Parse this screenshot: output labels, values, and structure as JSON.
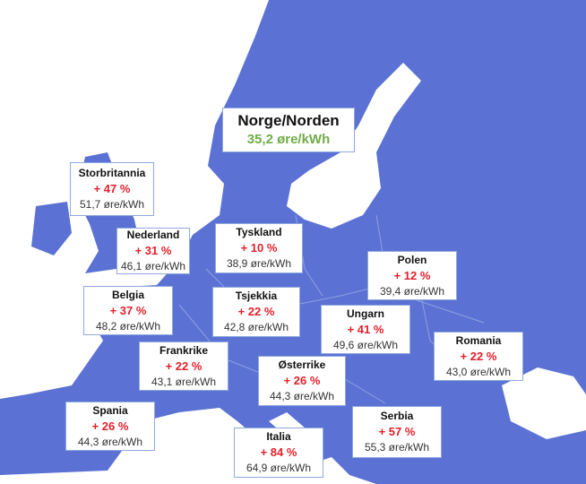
{
  "highlight": {
    "name": "Norge/Norden",
    "price": "35,2 øre/kWh"
  },
  "callouts": [
    {
      "name": "Storbritannia",
      "change": "+ 47 %",
      "price": "51,7 øre/kWh"
    },
    {
      "name": "Nederland",
      "change": "+ 31 %",
      "price": "46,1 øre/kWh"
    },
    {
      "name": "Tyskland",
      "change": "+ 10 %",
      "price": "38,9 øre/kWh"
    },
    {
      "name": "Polen",
      "change": "+ 12 %",
      "price": "39,4 øre/kWh"
    },
    {
      "name": "Belgia",
      "change": "+ 37 %",
      "price": "48,2 øre/kWh"
    },
    {
      "name": "Tsjekkia",
      "change": "+ 22 %",
      "price": "42,8 øre/kWh"
    },
    {
      "name": "Ungarn",
      "change": "+ 41 %",
      "price": "49,6 øre/kWh"
    },
    {
      "name": "Romania",
      "change": "+ 22 %",
      "price": "43,0 øre/kWh"
    },
    {
      "name": "Frankrike",
      "change": "+ 22 %",
      "price": "43,1 øre/kWh"
    },
    {
      "name": "Østerrike",
      "change": "+ 26 %",
      "price": "44,3 øre/kWh"
    },
    {
      "name": "Spania",
      "change": "+ 26 %",
      "price": "44,3 øre/kWh"
    },
    {
      "name": "Serbia",
      "change": "+ 57 %",
      "price": "55,3 øre/kWh"
    },
    {
      "name": "Italia",
      "change": "+ 84 %",
      "price": "64,9 øre/kWh"
    }
  ]
}
